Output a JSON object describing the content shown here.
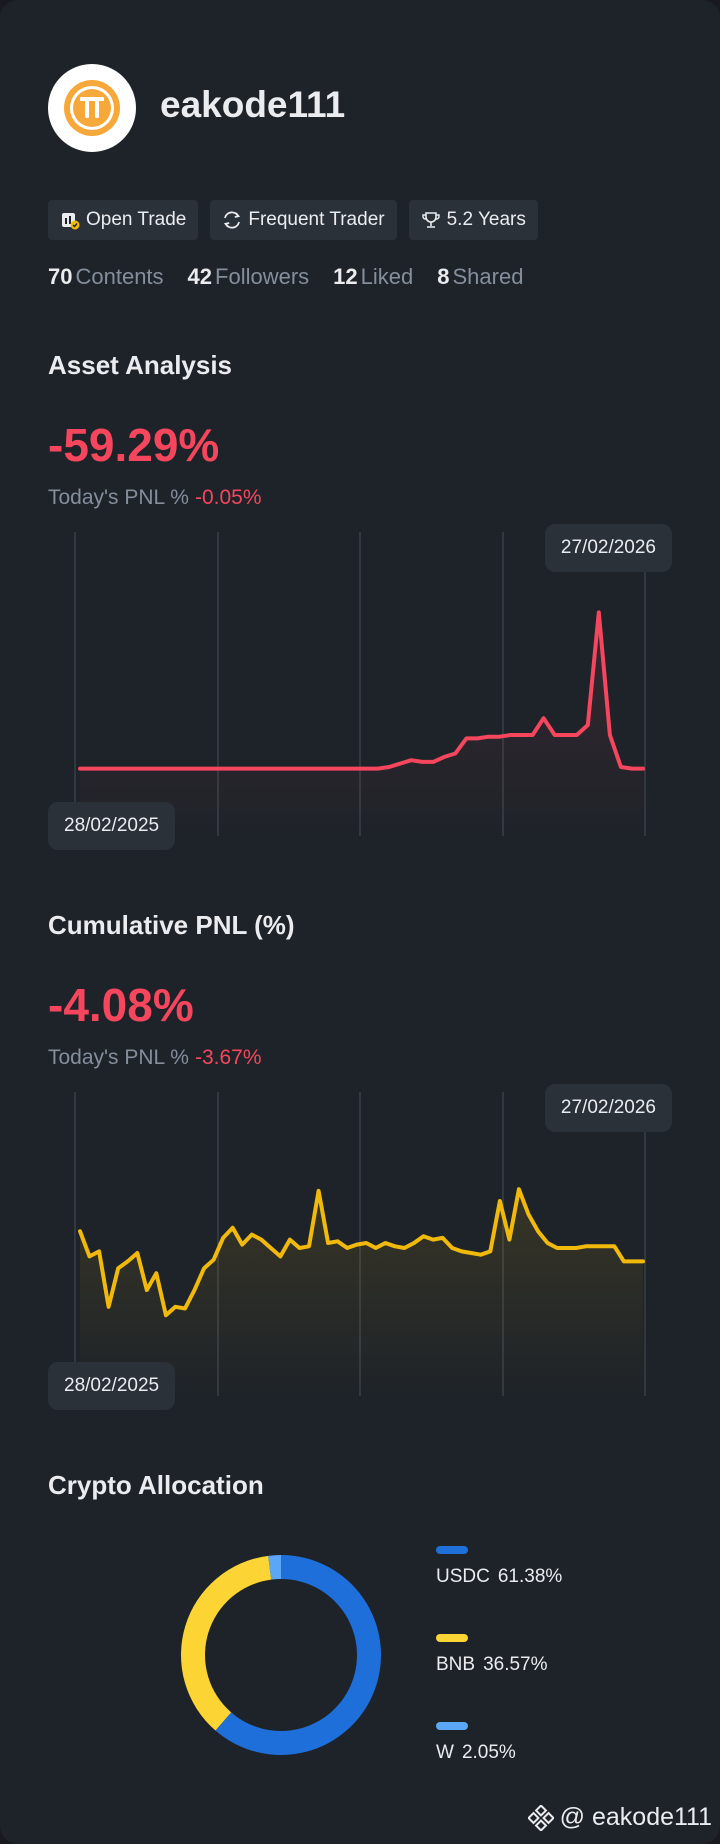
{
  "profile": {
    "username": "eakode111",
    "avatar_icon": "pi-coin-icon"
  },
  "badges": [
    {
      "label": "Open Trade",
      "icon": "open-trade-icon"
    },
    {
      "label": "Frequent Trader",
      "icon": "frequent-trader-icon"
    },
    {
      "label": "5.2 Years",
      "icon": "trophy-icon"
    }
  ],
  "stats": [
    {
      "value": "70",
      "label": "Contents"
    },
    {
      "value": "42",
      "label": "Followers"
    },
    {
      "value": "12",
      "label": "Liked"
    },
    {
      "value": "8",
      "label": "Shared"
    }
  ],
  "asset_analysis": {
    "title": "Asset Analysis",
    "pct": "-59.29%",
    "today_label": "Today's PNL %",
    "today_value": "-0.05%",
    "start_date": "28/02/2025",
    "end_date": "27/02/2026",
    "line_color": "#f6465d"
  },
  "cumulative_pnl": {
    "title": "Cumulative PNL (%)",
    "pct": "-4.08%",
    "today_label": "Today's PNL %",
    "today_value": "-3.67%",
    "start_date": "28/02/2025",
    "end_date": "27/02/2026",
    "line_color": "#f0b90b"
  },
  "allocation": {
    "title": "Crypto Allocation",
    "items": [
      {
        "symbol": "USDC",
        "pct": "61.38%",
        "value": 61.38,
        "color": "#1e6fd9"
      },
      {
        "symbol": "BNB",
        "pct": "36.57%",
        "value": 36.57,
        "color": "#fcd535"
      },
      {
        "symbol": "W",
        "pct": "2.05%",
        "value": 2.05,
        "color": "#5aa8f5"
      }
    ]
  },
  "watermark": {
    "text": "@ eakode111",
    "icon": "binance-logo-icon"
  },
  "chart_data": [
    {
      "type": "line",
      "title": "Asset Analysis",
      "x_start": "28/02/2025",
      "x_end": "27/02/2026",
      "series": [
        {
          "values": [
            0.02,
            0.02,
            0.02,
            0.02,
            0.02,
            0.02,
            0.02,
            0.02,
            0.02,
            0.02,
            0.02,
            0.02,
            0.02,
            0.02,
            0.02,
            0.02,
            0.02,
            0.02,
            0.02,
            0.02,
            0.02,
            0.02,
            0.02,
            0.02,
            0.02,
            0.02,
            0.02,
            0.02,
            0.03,
            0.05,
            0.07,
            0.06,
            0.06,
            0.09,
            0.11,
            0.2,
            0.2,
            0.21,
            0.21,
            0.22,
            0.22,
            0.22,
            0.32,
            0.22,
            0.22,
            0.22,
            0.28,
            0.95,
            0.22,
            0.03,
            0.02,
            0.02
          ]
        }
      ]
    },
    {
      "type": "line",
      "title": "Cumulative PNL (%)",
      "x_start": "28/02/2025",
      "x_end": "27/02/2026",
      "series": [
        {
          "values": [
            0.6,
            0.45,
            0.48,
            0.15,
            0.38,
            0.42,
            0.47,
            0.25,
            0.35,
            0.1,
            0.15,
            0.14,
            0.25,
            0.38,
            0.43,
            0.56,
            0.62,
            0.52,
            0.58,
            0.55,
            0.5,
            0.45,
            0.55,
            0.5,
            0.51,
            0.84,
            0.53,
            0.54,
            0.5,
            0.52,
            0.53,
            0.5,
            0.53,
            0.51,
            0.5,
            0.53,
            0.57,
            0.55,
            0.56,
            0.5,
            0.48,
            0.47,
            0.46,
            0.48,
            0.78,
            0.55,
            0.85,
            0.7,
            0.6,
            0.53,
            0.5,
            0.5,
            0.5,
            0.51,
            0.51,
            0.51,
            0.51,
            0.42,
            0.42,
            0.42
          ]
        }
      ]
    }
  ]
}
